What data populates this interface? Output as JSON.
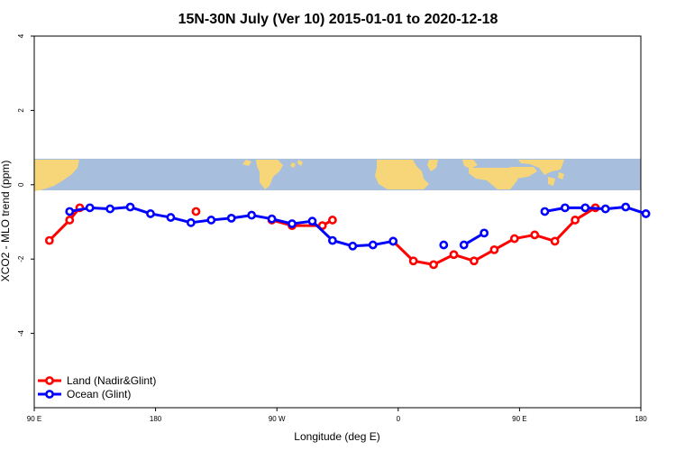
{
  "chart_data": {
    "type": "line",
    "title": "15N-30N July (Ver 10)   2015-01-01 to 2020-12-18",
    "xlabel": "Longitude (deg E)",
    "ylabel": "XCO2 - MLO trend (ppm)",
    "xlim": [
      90,
      450
    ],
    "ylim": [
      -6,
      4
    ],
    "x_ticks": [
      90,
      180,
      270,
      360,
      450,
      540
    ],
    "x_tick_labels": [
      "90 E",
      "180",
      "90 W",
      "0",
      "90 E",
      "180"
    ],
    "y_ticks": [
      -4,
      -2,
      0,
      2,
      4
    ],
    "y_tick_labels": [
      "-4",
      "-2",
      "0",
      "2",
      "4"
    ],
    "grid": false,
    "legend_position": "bottom-left",
    "map_band": {
      "y_range": [
        -0.15,
        0.7
      ],
      "ocean_color": "#a7bedc",
      "land_color": "#f7d679"
    },
    "series": [
      {
        "name": "Land (Nadir&Glint)",
        "color": "#ff0000",
        "segments": [
          {
            "x": [
              101.25,
              116.25,
              123.75
            ],
            "y": [
              -1.5,
              -0.95,
              -0.62
            ]
          },
          {
            "x": [
              210
            ],
            "y": [
              -0.72
            ]
          },
          {
            "x": [
              266.25,
              281.25,
              303.75,
              311.25
            ],
            "y": [
              -0.95,
              -1.1,
              -1.1,
              -0.95
            ]
          },
          {
            "x": [
              356.25,
              371.25,
              386.25,
              401.25,
              416.25,
              431.25,
              446.25,
              461.25,
              476.25,
              491.25,
              506.25
            ],
            "y": [
              -1.52,
              -2.05,
              -2.15,
              -1.88,
              -2.05,
              -1.75,
              -1.45,
              -1.35,
              -1.52,
              -0.95,
              -0.62
            ]
          }
        ]
      },
      {
        "name": "Ocean (Glint)",
        "color": "#0000ff",
        "segments": [
          {
            "x": [
              116.25,
              131.25,
              146.25,
              161.25,
              176.25,
              191.25,
              206.25,
              221.25,
              236.25,
              251.25,
              266.25,
              281.25,
              296.25,
              311.25,
              326.25,
              341.25,
              356.25
            ],
            "y": [
              -0.72,
              -0.62,
              -0.65,
              -0.6,
              -0.78,
              -0.88,
              -1.02,
              -0.95,
              -0.9,
              -0.82,
              -0.92,
              -1.05,
              -0.98,
              -1.5,
              -1.65,
              -1.62,
              -1.52
            ]
          },
          {
            "x": [
              393.75
            ],
            "y": [
              -1.62
            ]
          },
          {
            "x": [
              408.75,
              423.75
            ],
            "y": [
              -1.62,
              -1.3
            ]
          },
          {
            "x": [
              468.75,
              483.75,
              498.75,
              513.75,
              528.75,
              543.75
            ],
            "y": [
              -0.72,
              -0.62,
              -0.62,
              -0.65,
              -0.6,
              -0.78
            ]
          }
        ]
      }
    ]
  }
}
